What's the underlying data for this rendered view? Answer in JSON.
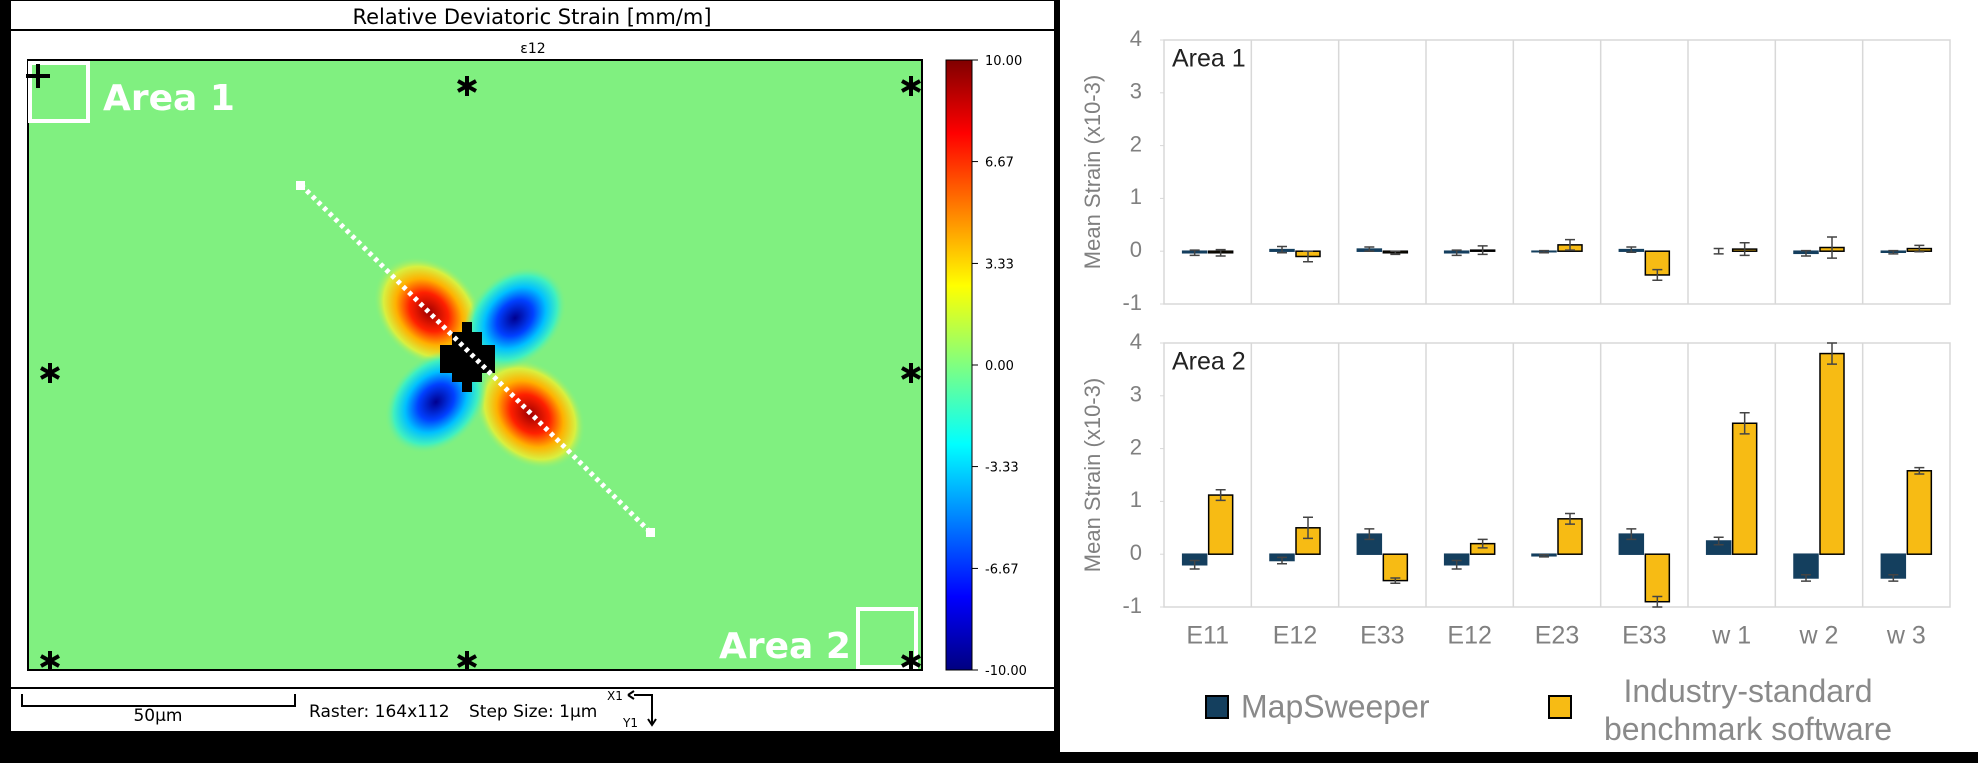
{
  "strain_map": {
    "title": "Relative Deviatoric Strain [mm/m]",
    "component": "ε12",
    "areas": [
      "Area 1",
      "Area 2"
    ],
    "colorbar": {
      "lim": [
        -10,
        10
      ],
      "ticks": [
        {
          "value": 10,
          "label": "10.00"
        },
        6.67,
        3.33,
        {
          "value": 0,
          "label": "0.00"
        },
        -3.33,
        -6.67,
        {
          "value": -10,
          "label": "-10.00"
        }
      ]
    },
    "scale_bar": "50µm",
    "raster": "Raster: 164x112",
    "step": "Step Size: 1µm",
    "axis_x": "X1",
    "axis_y": "Y1"
  },
  "chart_data": [
    {
      "type": "bar",
      "title": "Area 1",
      "ylabel": "Mean Strain (x10-3)",
      "ylim": [
        -1,
        4
      ],
      "yticks": [
        -1,
        0,
        1,
        2,
        3,
        4
      ],
      "series": [
        {
          "name": "MapSweeper",
          "color": "#143f5e",
          "values": [
            -0.03,
            0.03,
            0.04,
            -0.03,
            -0.01,
            0.03,
            0.0,
            -0.04,
            -0.02
          ],
          "errors": [
            0.05,
            0.06,
            0.04,
            0.05,
            0.02,
            0.05,
            0.05,
            0.05,
            0.03
          ]
        },
        {
          "name": "Industry-standard benchmark software",
          "color": "#f7bb14",
          "values": [
            -0.03,
            -0.1,
            -0.03,
            0.02,
            0.12,
            -0.45,
            0.04,
            0.07,
            0.05
          ],
          "errors": [
            0.06,
            0.1,
            0.03,
            0.08,
            0.1,
            0.1,
            0.12,
            0.2,
            0.06
          ]
        }
      ]
    },
    {
      "type": "bar",
      "title": "Area 2",
      "ylabel": "Mean Strain (x10-3)",
      "ylim": [
        -1,
        4
      ],
      "yticks": [
        -1,
        0,
        1,
        2,
        3,
        4
      ],
      "categories": [
        "E11",
        "E12",
        "E33",
        "E12",
        "E23",
        "E33",
        "w 1",
        "w 2",
        "w 3"
      ],
      "series": [
        {
          "color": "#143f5e",
          "values": [
            -0.2,
            -0.12,
            0.38,
            -0.2,
            -0.03,
            0.38,
            0.25,
            -0.45,
            -0.45
          ],
          "errors": [
            0.08,
            0.06,
            0.1,
            0.08,
            0.02,
            0.1,
            0.07,
            0.06,
            0.06
          ]
        },
        {
          "color": "#f7bb14",
          "values": [
            1.12,
            0.5,
            -0.5,
            0.2,
            0.67,
            -0.9,
            2.48,
            3.8,
            1.58
          ],
          "errors": [
            0.1,
            0.2,
            0.05,
            0.08,
            0.1,
            0.1,
            0.2,
            0.2,
            0.06
          ]
        }
      ]
    }
  ]
}
